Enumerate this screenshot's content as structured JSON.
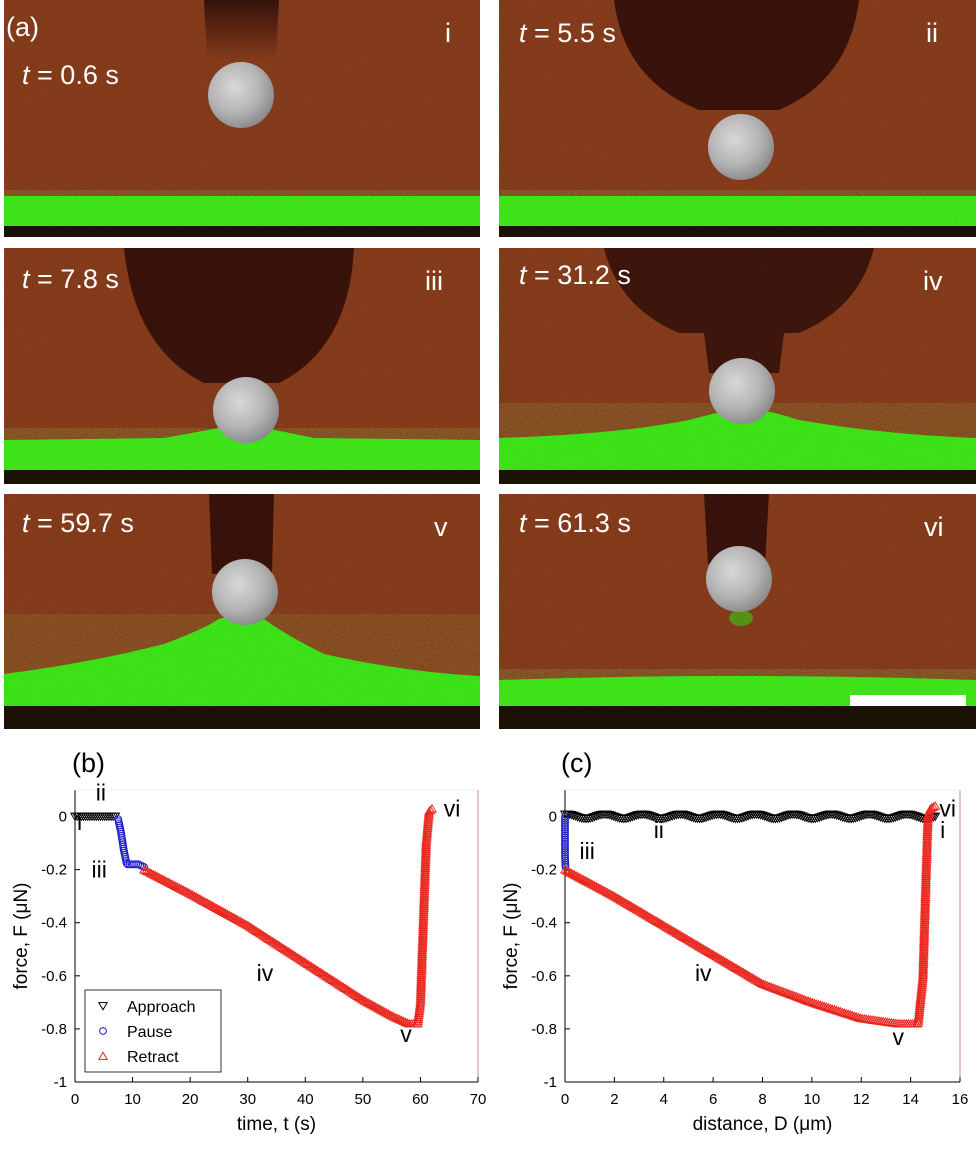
{
  "panel_a": {
    "label": "(a)",
    "frames": [
      {
        "time_label": "0.6 s",
        "roman": "i"
      },
      {
        "time_label": "5.5 s",
        "roman": "ii"
      },
      {
        "time_label": "7.8 s",
        "roman": "iii"
      },
      {
        "time_label": "31.2 s",
        "roman": "iv"
      },
      {
        "time_label": "59.7 s",
        "roman": "v"
      },
      {
        "time_label": "61.3 s",
        "roman": "vi"
      }
    ],
    "time_symbol": "t",
    "time_eq": " = "
  },
  "panel_b": {
    "label": "(b)"
  },
  "panel_c": {
    "label": "(c)"
  },
  "chart_data": [
    {
      "type": "scatter",
      "xlabel": "time, t (s)",
      "ylabel": "force, F (μN)",
      "xlim": [
        0,
        70
      ],
      "ylim": [
        -1,
        0.1
      ],
      "xticks": [
        "0",
        "10",
        "20",
        "30",
        "40",
        "50",
        "60",
        "70"
      ],
      "yticks": [
        "-1",
        "-0.8",
        "-0.6",
        "-0.4",
        "-0.2",
        "0"
      ],
      "legend": [
        "Approach",
        "Pause",
        "Retract"
      ],
      "legend_position": "bottom-left",
      "annotations": [
        "i",
        "ii",
        "iii",
        "iv",
        "v",
        "vi"
      ],
      "series": [
        {
          "name": "Approach",
          "color": "#000000",
          "marker": "triangle-down",
          "x": [
            0,
            1,
            2,
            3,
            4,
            5,
            6,
            7
          ],
          "y": [
            0,
            0,
            0,
            0,
            0,
            0,
            0,
            0
          ]
        },
        {
          "name": "Pause",
          "color": "#1f1fcc",
          "marker": "circle",
          "x": [
            7.5,
            8,
            8.5,
            9,
            10,
            11,
            12
          ],
          "y": [
            -0.01,
            -0.06,
            -0.13,
            -0.18,
            -0.18,
            -0.18,
            -0.19
          ]
        },
        {
          "name": "Retract",
          "color": "#e8261d",
          "marker": "triangle-up",
          "x": [
            12,
            20,
            30,
            40,
            50,
            55,
            58,
            59.5,
            60,
            60.5,
            61,
            61.5,
            62
          ],
          "y": [
            -0.2,
            -0.29,
            -0.41,
            -0.55,
            -0.69,
            -0.75,
            -0.78,
            -0.78,
            -0.7,
            -0.4,
            -0.1,
            0.02,
            0.03
          ]
        }
      ]
    },
    {
      "type": "scatter",
      "xlabel": "distance, D (μm)",
      "ylabel": "force, F (μN)",
      "xlim": [
        0,
        16
      ],
      "ylim": [
        -1,
        0.1
      ],
      "xticks": [
        "0",
        "2",
        "4",
        "6",
        "8",
        "10",
        "12",
        "14",
        "16"
      ],
      "yticks": [
        "-1",
        "-0.8",
        "-0.6",
        "-0.4",
        "-0.2",
        "0"
      ],
      "annotations": [
        "i",
        "ii",
        "iii",
        "iv",
        "v",
        "vi"
      ],
      "series": [
        {
          "name": "Approach",
          "color": "#000000",
          "marker": "triangle-down",
          "x": [
            15,
            14,
            12,
            10,
            8,
            6,
            4,
            2,
            0.5,
            0
          ],
          "y": [
            0,
            0,
            0,
            0,
            0,
            0,
            0,
            0,
            0,
            0
          ]
        },
        {
          "name": "Pause",
          "color": "#1f1fcc",
          "marker": "circle",
          "x": [
            0,
            0,
            0,
            0,
            0.02
          ],
          "y": [
            0,
            -0.05,
            -0.1,
            -0.15,
            -0.19
          ]
        },
        {
          "name": "Retract",
          "color": "#e8261d",
          "marker": "triangle-up",
          "x": [
            0,
            2,
            4,
            6,
            8,
            10,
            12,
            13.5,
            14.3,
            14.5,
            14.6,
            14.7,
            14.8,
            15
          ],
          "y": [
            -0.2,
            -0.3,
            -0.41,
            -0.52,
            -0.63,
            -0.7,
            -0.76,
            -0.78,
            -0.78,
            -0.6,
            -0.3,
            0,
            0.03,
            0.04
          ]
        }
      ]
    }
  ]
}
